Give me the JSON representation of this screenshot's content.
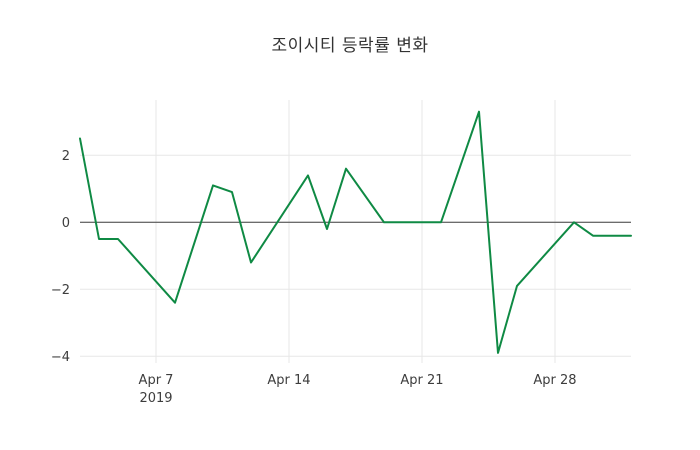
{
  "chart_data": {
    "type": "line",
    "title": "조이시티 등락률 변화",
    "grid_on": true,
    "legend": "none",
    "background": "#ffffff",
    "grid_color": "#e7e7e7",
    "zero_line_color": "#404040",
    "series": [
      {
        "name": "조이시티 등락률",
        "color": "#0f8a44",
        "dates": [
          "2019-04-03",
          "2019-04-04",
          "2019-04-05",
          "2019-04-08",
          "2019-04-10",
          "2019-04-11",
          "2019-04-12",
          "2019-04-15",
          "2019-04-16",
          "2019-04-17",
          "2019-04-19",
          "2019-04-22",
          "2019-04-24",
          "2019-04-25",
          "2019-04-26",
          "2019-04-29",
          "2019-04-30",
          "2019-05-02"
        ],
        "values": [
          2.5,
          -0.5,
          -0.5,
          -2.4,
          1.1,
          0.9,
          -1.2,
          1.4,
          -0.2,
          1.6,
          0.0,
          0.0,
          3.3,
          -3.9,
          -1.9,
          0.0,
          -0.4,
          -0.4
        ]
      }
    ],
    "x_axis": {
      "range": [
        "2019-04-03",
        "2019-05-02"
      ],
      "ticks": [
        {
          "date": "2019-04-07",
          "label": "Apr 7",
          "sublabel": "2019"
        },
        {
          "date": "2019-04-14",
          "label": "Apr 14",
          "sublabel": ""
        },
        {
          "date": "2019-04-21",
          "label": "Apr 21",
          "sublabel": ""
        },
        {
          "date": "2019-04-28",
          "label": "Apr 28",
          "sublabel": ""
        }
      ]
    },
    "y_axis": {
      "range": [
        -4.2,
        3.65
      ],
      "ticks": [
        {
          "value": 2,
          "label": "2"
        },
        {
          "value": 0,
          "label": "0"
        },
        {
          "value": -2,
          "label": "−2"
        },
        {
          "value": -4,
          "label": "−4"
        }
      ]
    }
  }
}
